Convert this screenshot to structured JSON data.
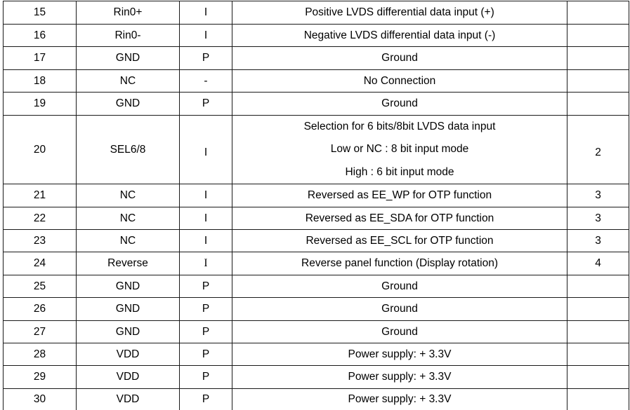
{
  "document": {
    "kind": "pin-description-table",
    "colors": {
      "background": "#ffffff",
      "border": "#1a1a1a",
      "text": "#000000"
    },
    "columns": [
      "pin-number",
      "symbol",
      "io-type",
      "description",
      "note"
    ],
    "rows": [
      {
        "pin": "15",
        "symbol": "Rin0+",
        "io": "I",
        "description": [
          "Positive LVDS differential data input (+)"
        ],
        "note": ""
      },
      {
        "pin": "16",
        "symbol": "Rin0-",
        "io": "I",
        "description": [
          "Negative LVDS differential data input (-)"
        ],
        "note": ""
      },
      {
        "pin": "17",
        "symbol": "GND",
        "io": "P",
        "description": [
          "Ground"
        ],
        "note": ""
      },
      {
        "pin": "18",
        "symbol": "NC",
        "io": "-",
        "description": [
          "No Connection"
        ],
        "note": ""
      },
      {
        "pin": "19",
        "symbol": "GND",
        "io": "P",
        "description": [
          "Ground"
        ],
        "note": ""
      },
      {
        "pin": "20",
        "symbol": "SEL6/8",
        "io": "I",
        "description": [
          "Selection for 6 bits/8bit LVDS data input",
          "Low or NC : 8 bit input mode",
          "High : 6 bit input mode"
        ],
        "note": "2",
        "tall": true
      },
      {
        "pin": "21",
        "symbol": "NC",
        "io": "I",
        "description": [
          "Reversed as EE_WP for OTP function"
        ],
        "note": "3"
      },
      {
        "pin": "22",
        "symbol": "NC",
        "io": "I",
        "description": [
          "Reversed as EE_SDA for OTP function"
        ],
        "note": "3"
      },
      {
        "pin": "23",
        "symbol": "NC",
        "io": "I",
        "description": [
          "Reversed as EE_SCL for OTP function"
        ],
        "note": "3"
      },
      {
        "pin": "24",
        "symbol": "Reverse",
        "io": "I",
        "description": [
          "Reverse panel function (Display rotation)"
        ],
        "note": "4",
        "io_serif": true
      },
      {
        "pin": "25",
        "symbol": "GND",
        "io": "P",
        "description": [
          "Ground"
        ],
        "note": ""
      },
      {
        "pin": "26",
        "symbol": "GND",
        "io": "P",
        "description": [
          "Ground"
        ],
        "note": ""
      },
      {
        "pin": "27",
        "symbol": "GND",
        "io": "P",
        "description": [
          "Ground"
        ],
        "note": ""
      },
      {
        "pin": "28",
        "symbol": "VDD",
        "io": "P",
        "description": [
          "Power supply: + 3.3V"
        ],
        "note": ""
      },
      {
        "pin": "29",
        "symbol": "VDD",
        "io": "P",
        "description": [
          "Power supply: + 3.3V"
        ],
        "note": ""
      },
      {
        "pin": "30",
        "symbol": "VDD",
        "io": "P",
        "description": [
          "Power supply: + 3.3V"
        ],
        "note": ""
      }
    ]
  }
}
